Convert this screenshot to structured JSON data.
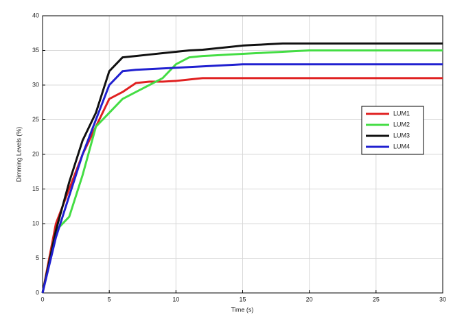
{
  "chart_data": {
    "type": "line",
    "xlabel": "Time (s)",
    "ylabel": "Dimming Levels (%)",
    "x": [
      0,
      1,
      2,
      3,
      4,
      5,
      6,
      7,
      8,
      9,
      10,
      11,
      12,
      13,
      14,
      15,
      16,
      17,
      18,
      19,
      20,
      21,
      22,
      23,
      24,
      25,
      26,
      27,
      28,
      29,
      30
    ],
    "series": [
      {
        "name": "LUM1",
        "color": "#e02020",
        "values": [
          0,
          10,
          15,
          20,
          24,
          28,
          29,
          30.3,
          30.5,
          30.5,
          30.6,
          30.8,
          31,
          31,
          31,
          31,
          31,
          31,
          31,
          31,
          31,
          31,
          31,
          31,
          31,
          31,
          31,
          31,
          31,
          31,
          31
        ]
      },
      {
        "name": "LUM2",
        "color": "#44dd44",
        "values": [
          0,
          9,
          11,
          17,
          24,
          26,
          28,
          29,
          30,
          31,
          33,
          34,
          34.2,
          34.3,
          34.4,
          34.5,
          34.6,
          34.7,
          34.8,
          34.9,
          35,
          35,
          35,
          35,
          35,
          35,
          35,
          35,
          35,
          35,
          35
        ]
      },
      {
        "name": "LUM3",
        "color": "#111111",
        "values": [
          0,
          9,
          16,
          22,
          26,
          32,
          34,
          34.2,
          34.4,
          34.6,
          34.8,
          35,
          35.1,
          35.3,
          35.5,
          35.7,
          35.8,
          35.9,
          36,
          36,
          36,
          36,
          36,
          36,
          36,
          36,
          36,
          36,
          36,
          36,
          36
        ]
      },
      {
        "name": "LUM4",
        "color": "#2020d0",
        "values": [
          0,
          8,
          14,
          20,
          25,
          30,
          32,
          32.2,
          32.3,
          32.4,
          32.5,
          32.6,
          32.7,
          32.8,
          32.9,
          33,
          33,
          33,
          33,
          33,
          33,
          33,
          33,
          33,
          33,
          33,
          33,
          33,
          33,
          33,
          33
        ]
      }
    ],
    "xlim": [
      0,
      30
    ],
    "xticks": [
      0,
      5,
      10,
      15,
      20,
      25,
      30
    ],
    "ylim": [
      0,
      40
    ],
    "yticks": [
      0,
      5,
      10,
      15,
      20,
      25,
      30,
      35,
      40
    ],
    "grid": true,
    "legend_loc": "center right"
  }
}
